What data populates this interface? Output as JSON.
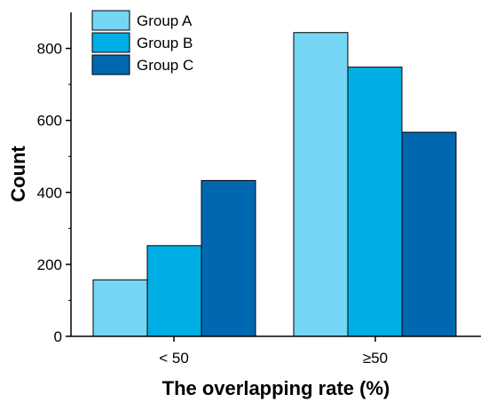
{
  "chart_data": {
    "type": "bar",
    "title": "",
    "xlabel": "The overlapping rate (%)",
    "ylabel": "Count",
    "categories": [
      "< 50",
      "≥50"
    ],
    "series": [
      {
        "name": "Group A",
        "values": [
          157,
          844
        ],
        "color": "#74d5f5"
      },
      {
        "name": "Group B",
        "values": [
          252,
          748
        ],
        "color": "#00aee6"
      },
      {
        "name": "Group C",
        "values": [
          433,
          567
        ],
        "color": "#0068b0"
      }
    ],
    "ylim": [
      0,
      900
    ],
    "yticks": [
      0,
      200,
      400,
      600,
      800
    ],
    "grid": false,
    "legend_position": "top-left"
  }
}
